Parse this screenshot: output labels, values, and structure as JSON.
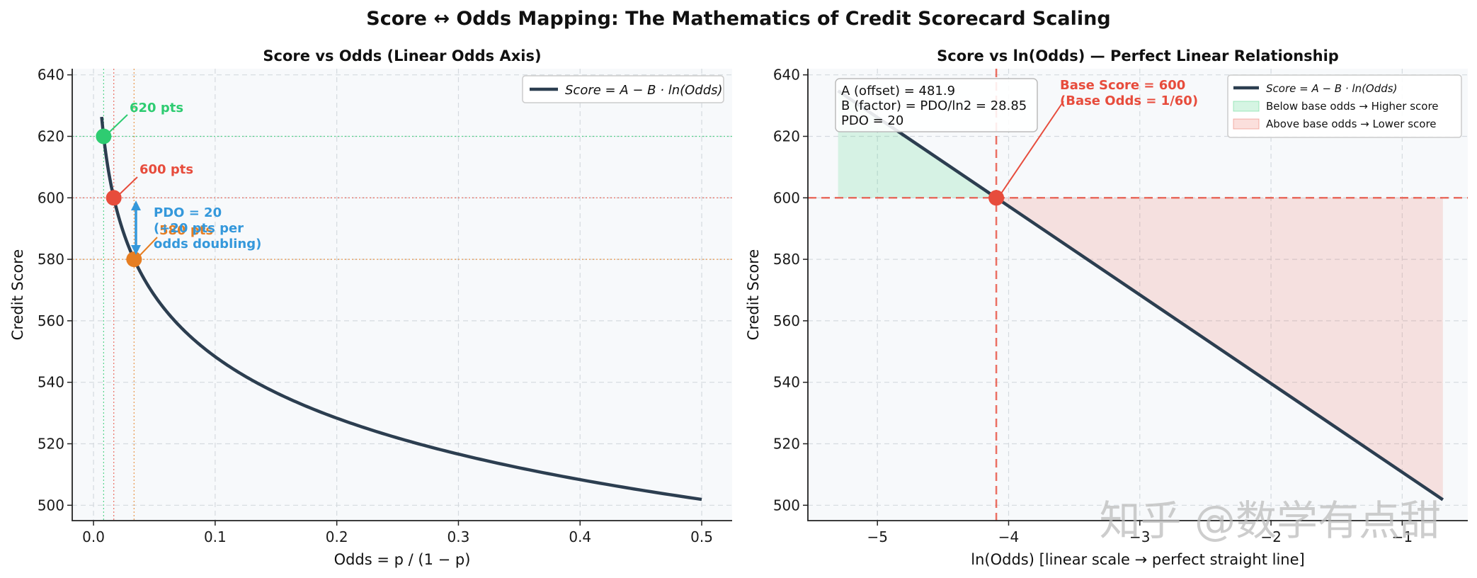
{
  "figure": {
    "suptitle": "Score ↔ Odds Mapping: The Mathematics of Credit Scorecard Scaling",
    "watermark": "知乎 @数学有点甜"
  },
  "colors": {
    "curve": "#2c3e50",
    "green": "#2ecc71",
    "red": "#e74c3c",
    "orange": "#e67e22",
    "blue": "#3498db",
    "panel_bg": "#f7f9fb",
    "grid": "#d5dadf"
  },
  "chart_data": [
    {
      "type": "line",
      "title": "Score vs Odds (Linear Odds Axis)",
      "xlabel": "Odds = p / (1 − p)",
      "ylabel": "Credit Score",
      "xlim": [
        -0.0175,
        0.525
      ],
      "ylim": [
        495,
        642
      ],
      "xticks": [
        0.0,
        0.1,
        0.2,
        0.3,
        0.4,
        0.5
      ],
      "xtick_labels": [
        "0.0",
        "0.1",
        "0.2",
        "0.3",
        "0.4",
        "0.5"
      ],
      "yticks": [
        500,
        520,
        540,
        560,
        580,
        600,
        620,
        640
      ],
      "ytick_labels": [
        "500",
        "520",
        "540",
        "560",
        "580",
        "600",
        "620",
        "640"
      ],
      "grid": true,
      "legend_position": "top-right",
      "series": [
        {
          "name": "Score = A − B · ln(Odds)",
          "formula": "score = 481.9 - 28.85*ln(odds)",
          "x_range": [
            0.0067,
            0.5
          ]
        }
      ],
      "points": [
        {
          "label": "620 pts",
          "x": 0.00833,
          "y": 620,
          "color": "green"
        },
        {
          "label": "600 pts",
          "x": 0.01667,
          "y": 600,
          "color": "red"
        },
        {
          "label": "580 pts",
          "x": 0.03333,
          "y": 580,
          "color": "orange"
        }
      ],
      "annotations": [
        {
          "text_lines": [
            "PDO = 20",
            "(+20 pts per",
            "odds doubling)"
          ],
          "arrow_from": 580,
          "arrow_to": 600,
          "color": "blue"
        }
      ]
    },
    {
      "type": "line",
      "title": "Score vs ln(Odds) — Perfect Linear Relationship",
      "xlabel": "ln(Odds)  [linear scale → perfect straight line]",
      "ylabel": "Credit Score",
      "xlim": [
        -5.53,
        -0.5
      ],
      "ylim": [
        495,
        642
      ],
      "xticks": [
        -5,
        -4,
        -3,
        -2,
        -1
      ],
      "xtick_labels": [
        "−5",
        "−4",
        "−3",
        "−2",
        "−1"
      ],
      "yticks": [
        500,
        520,
        540,
        560,
        580,
        600,
        620,
        640
      ],
      "ytick_labels": [
        "500",
        "520",
        "540",
        "560",
        "580",
        "600",
        "620",
        "640"
      ],
      "grid": true,
      "legend_position": "top-right",
      "series": [
        {
          "name": "Score = A − B · ln(Odds)",
          "x_range": [
            -5.3,
            -0.69
          ],
          "slope": -28.85,
          "intercept": 481.9
        }
      ],
      "fill_regions": [
        {
          "name": "Below base odds → Higher score",
          "x_range": [
            -5.3,
            -4.094
          ],
          "color": "green"
        },
        {
          "name": "Above base odds → Lower score",
          "x_range": [
            -4.094,
            -0.69
          ],
          "color": "red"
        }
      ],
      "base_point": {
        "x": -4.094,
        "y": 600
      },
      "base_annotation": [
        "Base Score = 600",
        "(Base Odds = 1/60)"
      ],
      "info_box": [
        "A (offset) = 481.9",
        "B (factor) = PDO/ln2 = 28.85",
        "PDO = 20"
      ]
    }
  ]
}
